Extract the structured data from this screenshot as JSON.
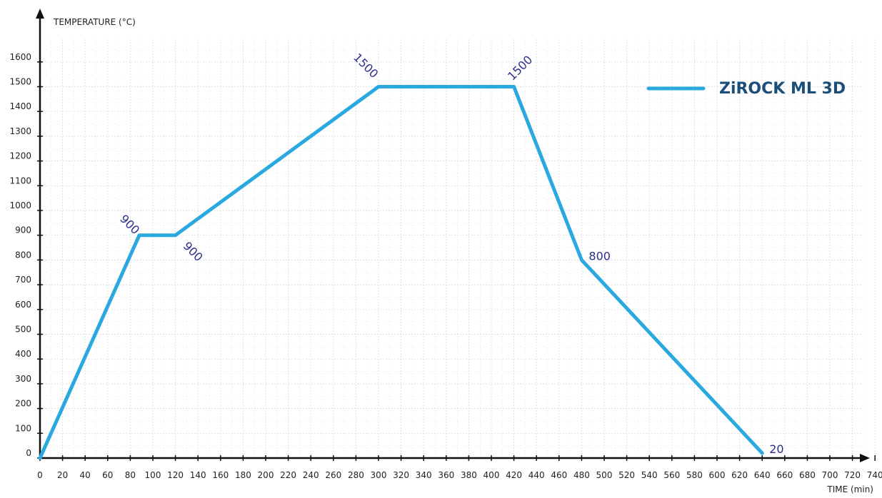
{
  "chart_data": {
    "type": "line",
    "xlabel": "TIME (min)",
    "ylabel": "TEMPERATURE (°C)",
    "xlim": [
      0,
      740
    ],
    "ylim": [
      0,
      1600
    ],
    "x_ticks": [
      0,
      20,
      40,
      60,
      80,
      100,
      120,
      140,
      160,
      180,
      200,
      220,
      240,
      260,
      280,
      300,
      320,
      340,
      360,
      380,
      400,
      420,
      440,
      460,
      480,
      500,
      520,
      540,
      560,
      580,
      600,
      620,
      640,
      660,
      680,
      700,
      720,
      740
    ],
    "y_ticks": [
      0,
      100,
      200,
      300,
      400,
      500,
      600,
      700,
      800,
      900,
      1000,
      1100,
      1200,
      1300,
      1400,
      1500,
      1600
    ],
    "grid": true,
    "legend": "top-right",
    "series": [
      {
        "name": "ZiROCK ML 3D",
        "color": "#29a9e0",
        "x": [
          0,
          88,
          120,
          300,
          420,
          480,
          640
        ],
        "y": [
          0,
          900,
          900,
          1500,
          1500,
          800,
          20
        ]
      }
    ],
    "annotations": [
      {
        "x": 88,
        "y": 900,
        "text": "900"
      },
      {
        "x": 120,
        "y": 900,
        "text": "900"
      },
      {
        "x": 300,
        "y": 1500,
        "text": "1500"
      },
      {
        "x": 420,
        "y": 1500,
        "text": "1500"
      },
      {
        "x": 480,
        "y": 800,
        "text": "800"
      },
      {
        "x": 640,
        "y": 20,
        "text": "20"
      }
    ]
  },
  "colors": {
    "line": "#29a9e0",
    "legend_text": "#1b4f7a",
    "data_label": "#2b2f8a",
    "axis": "#111111",
    "grid": "#d4d4d4"
  }
}
